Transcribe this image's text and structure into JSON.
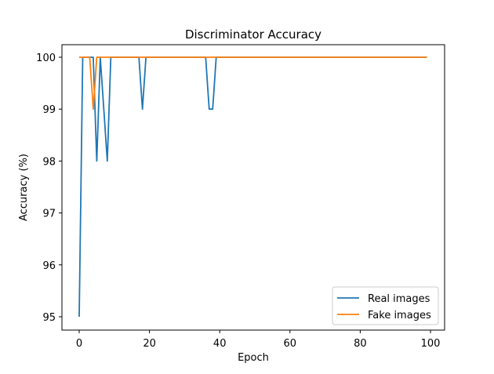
{
  "chart_data": {
    "type": "line",
    "title": "Discriminator Accuracy",
    "xlabel": "Epoch",
    "ylabel": "Accuracy (%)",
    "xlim": [
      -5,
      104
    ],
    "ylim": [
      94.75,
      100.25
    ],
    "xticks": [
      0,
      20,
      40,
      60,
      80,
      100
    ],
    "yticks": [
      95,
      96,
      97,
      98,
      99,
      100
    ],
    "grid": false,
    "legend_position": "lower right",
    "x_range": [
      0,
      99
    ],
    "series": [
      {
        "name": "Real images",
        "color": "#1f77b4",
        "points": [
          [
            0,
            95
          ],
          [
            1,
            100
          ],
          [
            2,
            100
          ],
          [
            3,
            100
          ],
          [
            4,
            100
          ],
          [
            5,
            98
          ],
          [
            6,
            100
          ],
          [
            7,
            99
          ],
          [
            8,
            98
          ],
          [
            9,
            100
          ],
          [
            10,
            100
          ],
          [
            17,
            100
          ],
          [
            18,
            99
          ],
          [
            19,
            100
          ],
          [
            36,
            100
          ],
          [
            37,
            99
          ],
          [
            38,
            99
          ],
          [
            39,
            100
          ],
          [
            99,
            100
          ]
        ]
      },
      {
        "name": "Fake images",
        "color": "#ff7f0e",
        "points": [
          [
            0,
            100
          ],
          [
            1,
            100
          ],
          [
            2,
            100
          ],
          [
            3,
            100
          ],
          [
            4,
            99
          ],
          [
            5,
            100
          ],
          [
            99,
            100
          ]
        ]
      }
    ]
  },
  "legend": {
    "items": [
      {
        "label": "Real images",
        "color": "#1f77b4"
      },
      {
        "label": "Fake images",
        "color": "#ff7f0e"
      }
    ]
  }
}
